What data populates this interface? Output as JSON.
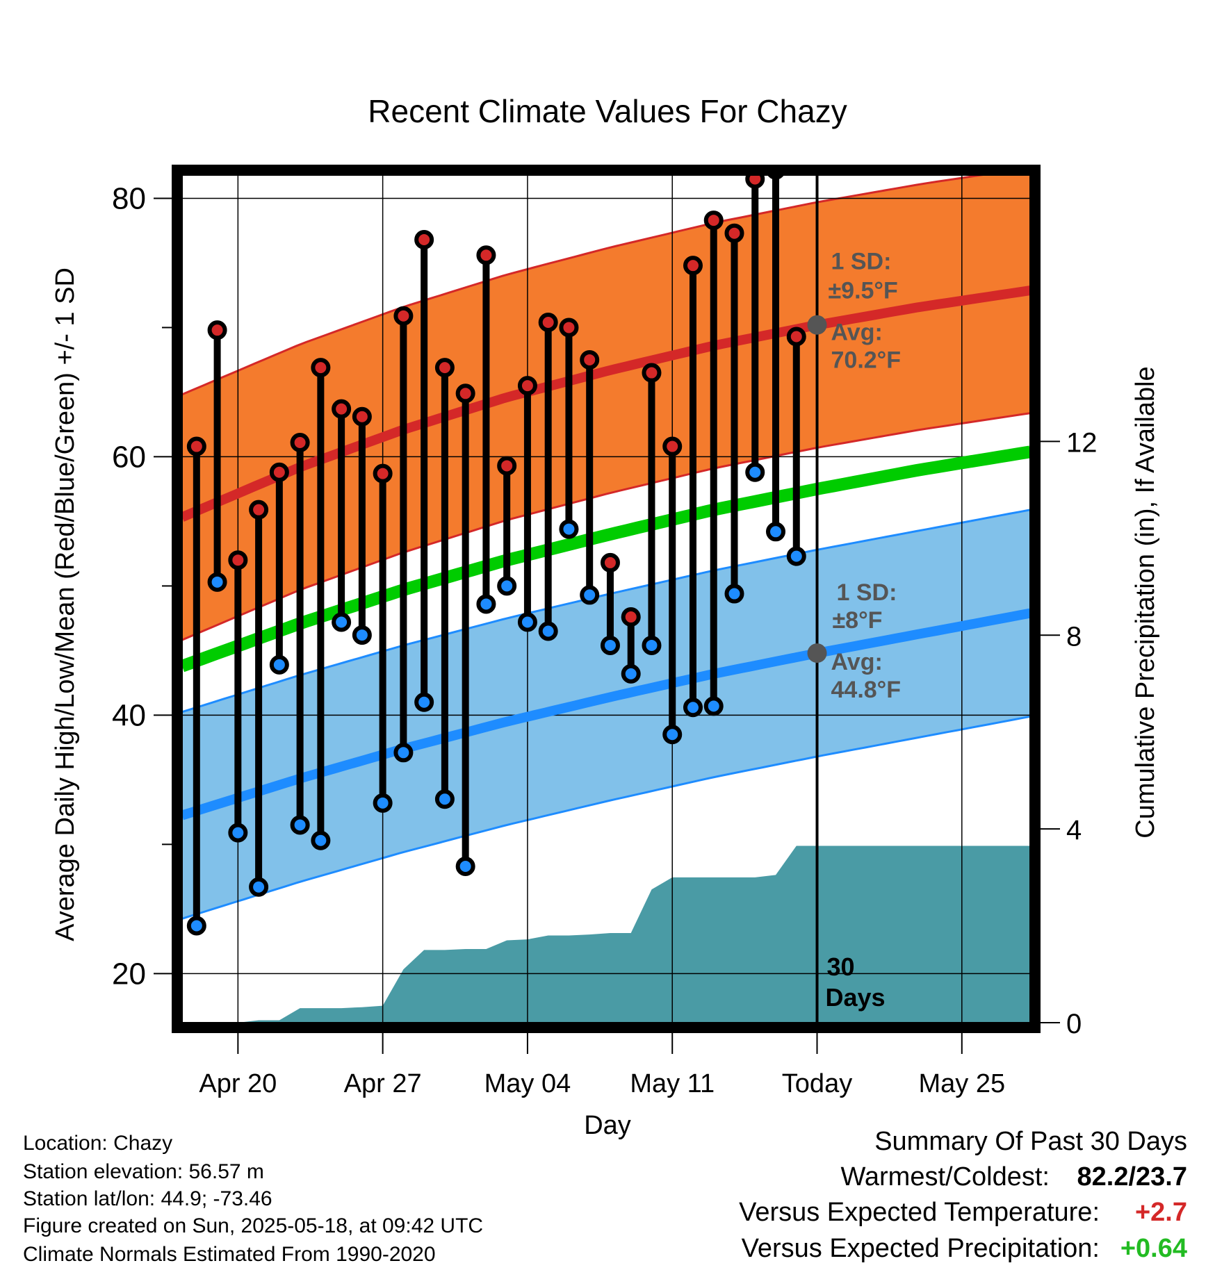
{
  "chart_data": {
    "type": "line",
    "title": "Recent Climate Values For Chazy",
    "xlabel": "Day",
    "ylabel": "Average Daily High/Low/Mean (Red/Blue/Green) +/- 1 SD",
    "y2label": "Cumulative Precipitation (in), If Available",
    "x_ticks": [
      {
        "day": 2,
        "label": "Apr 20"
      },
      {
        "day": 9,
        "label": "Apr 27"
      },
      {
        "day": 16,
        "label": "May 04"
      },
      {
        "day": 23,
        "label": "May 11"
      },
      {
        "day": 30,
        "label": "Today"
      },
      {
        "day": 37,
        "label": "May 25"
      }
    ],
    "x_range": [
      -0.7,
      40.3
    ],
    "ylim": [
      16.2,
      81.8
    ],
    "y_ticks": [
      20,
      40,
      60,
      80
    ],
    "y2lim": [
      0,
      17.5
    ],
    "y2_ticks": [
      0,
      4,
      8,
      12
    ],
    "grid": true,
    "today_day": 30,
    "today_label": "30\nDays",
    "daily_highs": [
      60.8,
      69.8,
      52.0,
      55.9,
      58.8,
      61.1,
      66.9,
      63.7,
      63.1,
      58.7,
      70.9,
      76.8,
      66.9,
      64.9,
      75.6,
      59.3,
      65.5,
      70.4,
      70.0,
      67.5,
      51.8,
      47.6,
      66.5,
      60.8,
      74.8,
      78.3,
      77.3,
      81.5,
      82.2,
      69.3
    ],
    "daily_lows": [
      23.7,
      50.3,
      30.9,
      26.7,
      43.9,
      31.5,
      30.3,
      47.2,
      46.2,
      33.2,
      37.1,
      41.0,
      33.5,
      28.3,
      48.6,
      50.0,
      47.2,
      46.5,
      54.4,
      49.3,
      45.4,
      43.2,
      45.4,
      38.5,
      40.6,
      40.7,
      49.4,
      58.8,
      54.2,
      52.3
    ],
    "normals": {
      "days": [
        0,
        5,
        10,
        15,
        20,
        25,
        30,
        35,
        40
      ],
      "high_avg": [
        55.8,
        59.2,
        62.1,
        64.6,
        66.7,
        68.6,
        70.2,
        71.6,
        72.8
      ],
      "low_avg": [
        32.6,
        35.1,
        37.4,
        39.5,
        41.4,
        43.2,
        44.8,
        46.3,
        47.8
      ],
      "mean": [
        44.2,
        47.1,
        49.7,
        52.0,
        54.0,
        55.9,
        57.5,
        59.0,
        60.3
      ],
      "high_sd": 9.5,
      "low_sd": 8.0
    },
    "precip_cumulative": {
      "days": [
        0,
        1,
        2,
        3,
        4,
        5,
        6,
        7,
        8,
        9,
        10,
        11,
        12,
        13,
        14,
        15,
        16,
        17,
        18,
        19,
        20,
        21,
        22,
        23,
        24,
        25,
        26,
        27,
        28,
        29,
        30,
        40.3
      ],
      "values": [
        0.0,
        0.0,
        0.0,
        0.05,
        0.05,
        0.3,
        0.3,
        0.3,
        0.32,
        0.35,
        1.1,
        1.5,
        1.5,
        1.52,
        1.52,
        1.7,
        1.72,
        1.8,
        1.8,
        1.82,
        1.85,
        1.85,
        2.75,
        3.0,
        3.0,
        3.0,
        3.0,
        3.0,
        3.05,
        3.65,
        3.65,
        3.65
      ]
    },
    "annotations": [
      {
        "target": "high",
        "sd_label": "1 SD:",
        "sd_value": "±9.5°F",
        "avg_label": "Avg:",
        "avg_value": "70.2°F"
      },
      {
        "target": "low",
        "sd_label": "1 SD:",
        "sd_value": "±8°F",
        "avg_label": "Avg:",
        "avg_value": "44.8°F"
      }
    ],
    "colors": {
      "high_band": "#f47b2d",
      "high_line": "#d42828",
      "low_band": "#81c1ea",
      "low_line": "#1e8cff",
      "mean_line": "#00cc00",
      "precip": "#4a9ba5",
      "high_dot": "#d42828",
      "low_dot": "#1e8cff"
    }
  },
  "footer": {
    "location": "Location: Chazy",
    "elevation": "Station elevation: 56.57 m",
    "latlon": "Station lat/lon: 44.9; -73.46",
    "created": "Figure created on Sun, 2025-05-18, at 09:42 UTC",
    "normals": "Climate Normals Estimated From 1990-2020"
  },
  "summary": {
    "title": "Summary Of Past 30 Days",
    "warm_cold_label": "Warmest/Coldest:",
    "warm_cold_value": "82.2/23.7",
    "temp_label": "Versus Expected Temperature:",
    "temp_value": "+2.7",
    "temp_color": "#d42828",
    "precip_label": "Versus Expected Precipitation:",
    "precip_value": "+0.64",
    "precip_color": "#22bb22"
  }
}
